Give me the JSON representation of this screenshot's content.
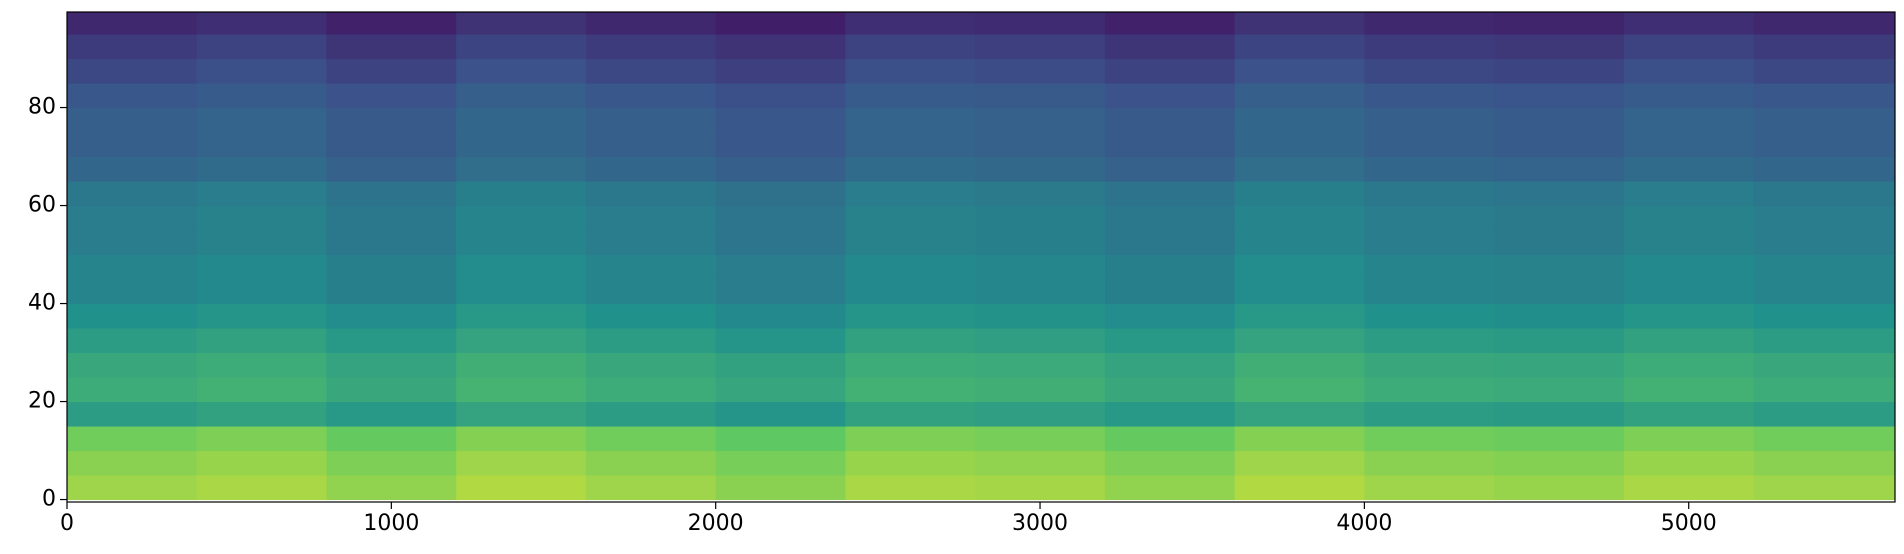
{
  "chart_data": {
    "type": "heatmap",
    "colormap": "viridis",
    "zlim": [
      0,
      1
    ],
    "xbins": [
      0,
      400,
      800,
      1200,
      1600,
      2000,
      2400,
      2800,
      3200,
      3600,
      4000,
      4400,
      4800,
      5200,
      5636
    ],
    "ybins": [
      0,
      5,
      10,
      15,
      20,
      25,
      30,
      35,
      40,
      45,
      50,
      55,
      60,
      65,
      70,
      75,
      80,
      85,
      90,
      95,
      100
    ],
    "z": [
      [
        0.85,
        0.87,
        0.83,
        0.88,
        0.85,
        0.82,
        0.87,
        0.86,
        0.83,
        0.88,
        0.85,
        0.84,
        0.87,
        0.85
      ],
      [
        0.82,
        0.84,
        0.8,
        0.85,
        0.82,
        0.79,
        0.84,
        0.83,
        0.8,
        0.85,
        0.82,
        0.81,
        0.84,
        0.82
      ],
      [
        0.78,
        0.8,
        0.76,
        0.81,
        0.78,
        0.75,
        0.8,
        0.79,
        0.76,
        0.81,
        0.78,
        0.77,
        0.8,
        0.78
      ],
      [
        0.55,
        0.57,
        0.53,
        0.58,
        0.55,
        0.52,
        0.57,
        0.56,
        0.53,
        0.58,
        0.55,
        0.54,
        0.57,
        0.55
      ],
      [
        0.62,
        0.64,
        0.6,
        0.65,
        0.62,
        0.59,
        0.64,
        0.63,
        0.6,
        0.65,
        0.62,
        0.61,
        0.64,
        0.62
      ],
      [
        0.6,
        0.62,
        0.58,
        0.63,
        0.6,
        0.57,
        0.62,
        0.61,
        0.58,
        0.63,
        0.6,
        0.59,
        0.62,
        0.6
      ],
      [
        0.55,
        0.57,
        0.53,
        0.58,
        0.55,
        0.52,
        0.57,
        0.56,
        0.53,
        0.58,
        0.55,
        0.54,
        0.57,
        0.55
      ],
      [
        0.5,
        0.52,
        0.48,
        0.53,
        0.5,
        0.47,
        0.52,
        0.51,
        0.48,
        0.53,
        0.5,
        0.49,
        0.52,
        0.5
      ],
      [
        0.45,
        0.47,
        0.43,
        0.48,
        0.45,
        0.42,
        0.47,
        0.46,
        0.43,
        0.48,
        0.45,
        0.44,
        0.47,
        0.45
      ],
      [
        0.45,
        0.47,
        0.43,
        0.48,
        0.45,
        0.42,
        0.47,
        0.46,
        0.43,
        0.48,
        0.45,
        0.44,
        0.47,
        0.45
      ],
      [
        0.42,
        0.44,
        0.4,
        0.45,
        0.42,
        0.39,
        0.44,
        0.43,
        0.4,
        0.45,
        0.42,
        0.41,
        0.44,
        0.42
      ],
      [
        0.42,
        0.44,
        0.4,
        0.45,
        0.42,
        0.39,
        0.44,
        0.43,
        0.4,
        0.45,
        0.42,
        0.41,
        0.44,
        0.42
      ],
      [
        0.4,
        0.42,
        0.38,
        0.43,
        0.4,
        0.37,
        0.42,
        0.41,
        0.38,
        0.43,
        0.4,
        0.39,
        0.42,
        0.4
      ],
      [
        0.33,
        0.35,
        0.31,
        0.36,
        0.33,
        0.3,
        0.35,
        0.34,
        0.31,
        0.36,
        0.33,
        0.32,
        0.35,
        0.33
      ],
      [
        0.3,
        0.32,
        0.28,
        0.33,
        0.3,
        0.27,
        0.32,
        0.31,
        0.28,
        0.33,
        0.3,
        0.29,
        0.32,
        0.3
      ],
      [
        0.3,
        0.32,
        0.28,
        0.33,
        0.3,
        0.27,
        0.32,
        0.31,
        0.28,
        0.33,
        0.3,
        0.29,
        0.32,
        0.3
      ],
      [
        0.27,
        0.29,
        0.25,
        0.3,
        0.27,
        0.24,
        0.29,
        0.28,
        0.25,
        0.3,
        0.27,
        0.26,
        0.29,
        0.27
      ],
      [
        0.22,
        0.24,
        0.2,
        0.25,
        0.22,
        0.19,
        0.24,
        0.23,
        0.2,
        0.25,
        0.22,
        0.21,
        0.24,
        0.22
      ],
      [
        0.18,
        0.2,
        0.16,
        0.21,
        0.18,
        0.15,
        0.2,
        0.19,
        0.16,
        0.21,
        0.18,
        0.17,
        0.2,
        0.18
      ],
      [
        0.12,
        0.14,
        0.1,
        0.15,
        0.12,
        0.09,
        0.14,
        0.13,
        0.1,
        0.15,
        0.12,
        0.11,
        0.14,
        0.12
      ]
    ],
    "xlim": [
      0,
      5636
    ],
    "ylim": [
      -0.5,
      99.5
    ],
    "xticks": [
      0,
      1000,
      2000,
      3000,
      4000,
      5000
    ],
    "yticks": [
      0,
      20,
      40,
      60,
      80
    ]
  }
}
